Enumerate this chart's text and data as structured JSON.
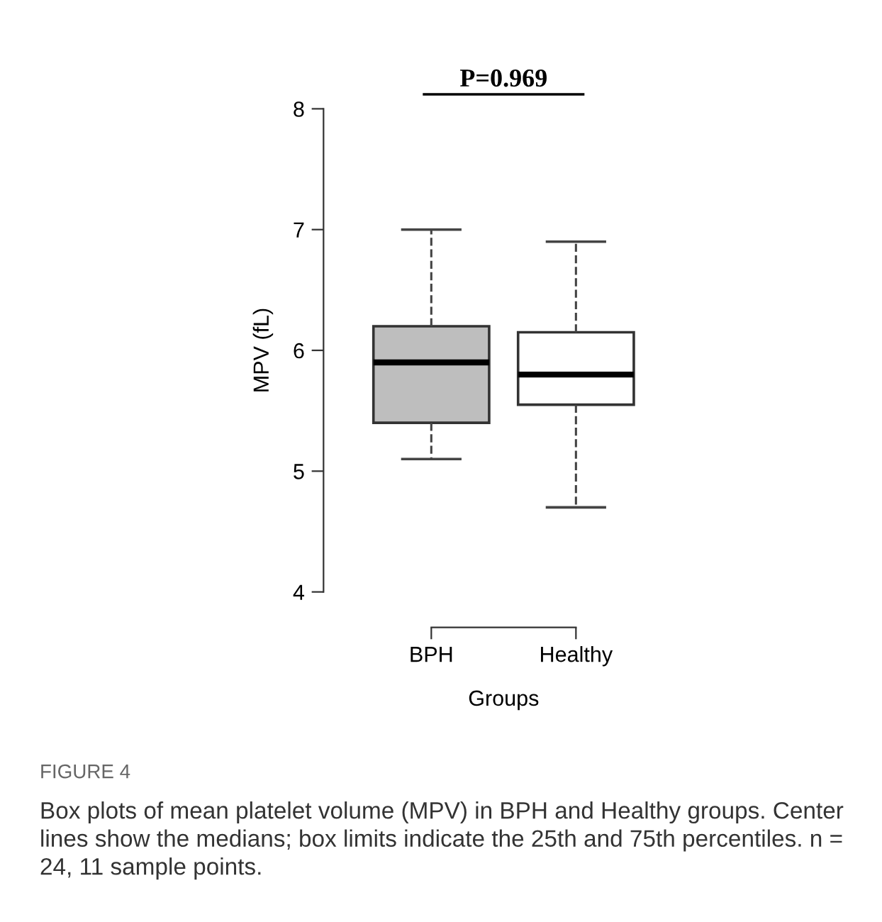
{
  "chart_data": {
    "type": "box",
    "xlabel": "Groups",
    "ylabel": "MPV (fL)",
    "categories": [
      "BPH",
      "Healthy"
    ],
    "boxes": [
      {
        "low": 5.1,
        "q1": 5.4,
        "median": 5.9,
        "q3": 6.2,
        "high": 7.0
      },
      {
        "low": 4.7,
        "q1": 5.55,
        "median": 5.8,
        "q3": 6.15,
        "high": 6.9
      }
    ],
    "colors": [
      "#bebebe",
      "#ffffff"
    ],
    "line_style": "dashed",
    "ylim": [
      4,
      8
    ],
    "yticks": [
      4,
      5,
      6,
      7,
      8
    ],
    "grid": false,
    "annotations": [
      "P=0.969",
      "FIGURE 4",
      "Box plots of mean platelet volume (MPV) in BPH and Healthy groups. Center lines show the medians; box limits indicate the 25th and 75th percentiles. n = 24, 11 sample points."
    ]
  }
}
